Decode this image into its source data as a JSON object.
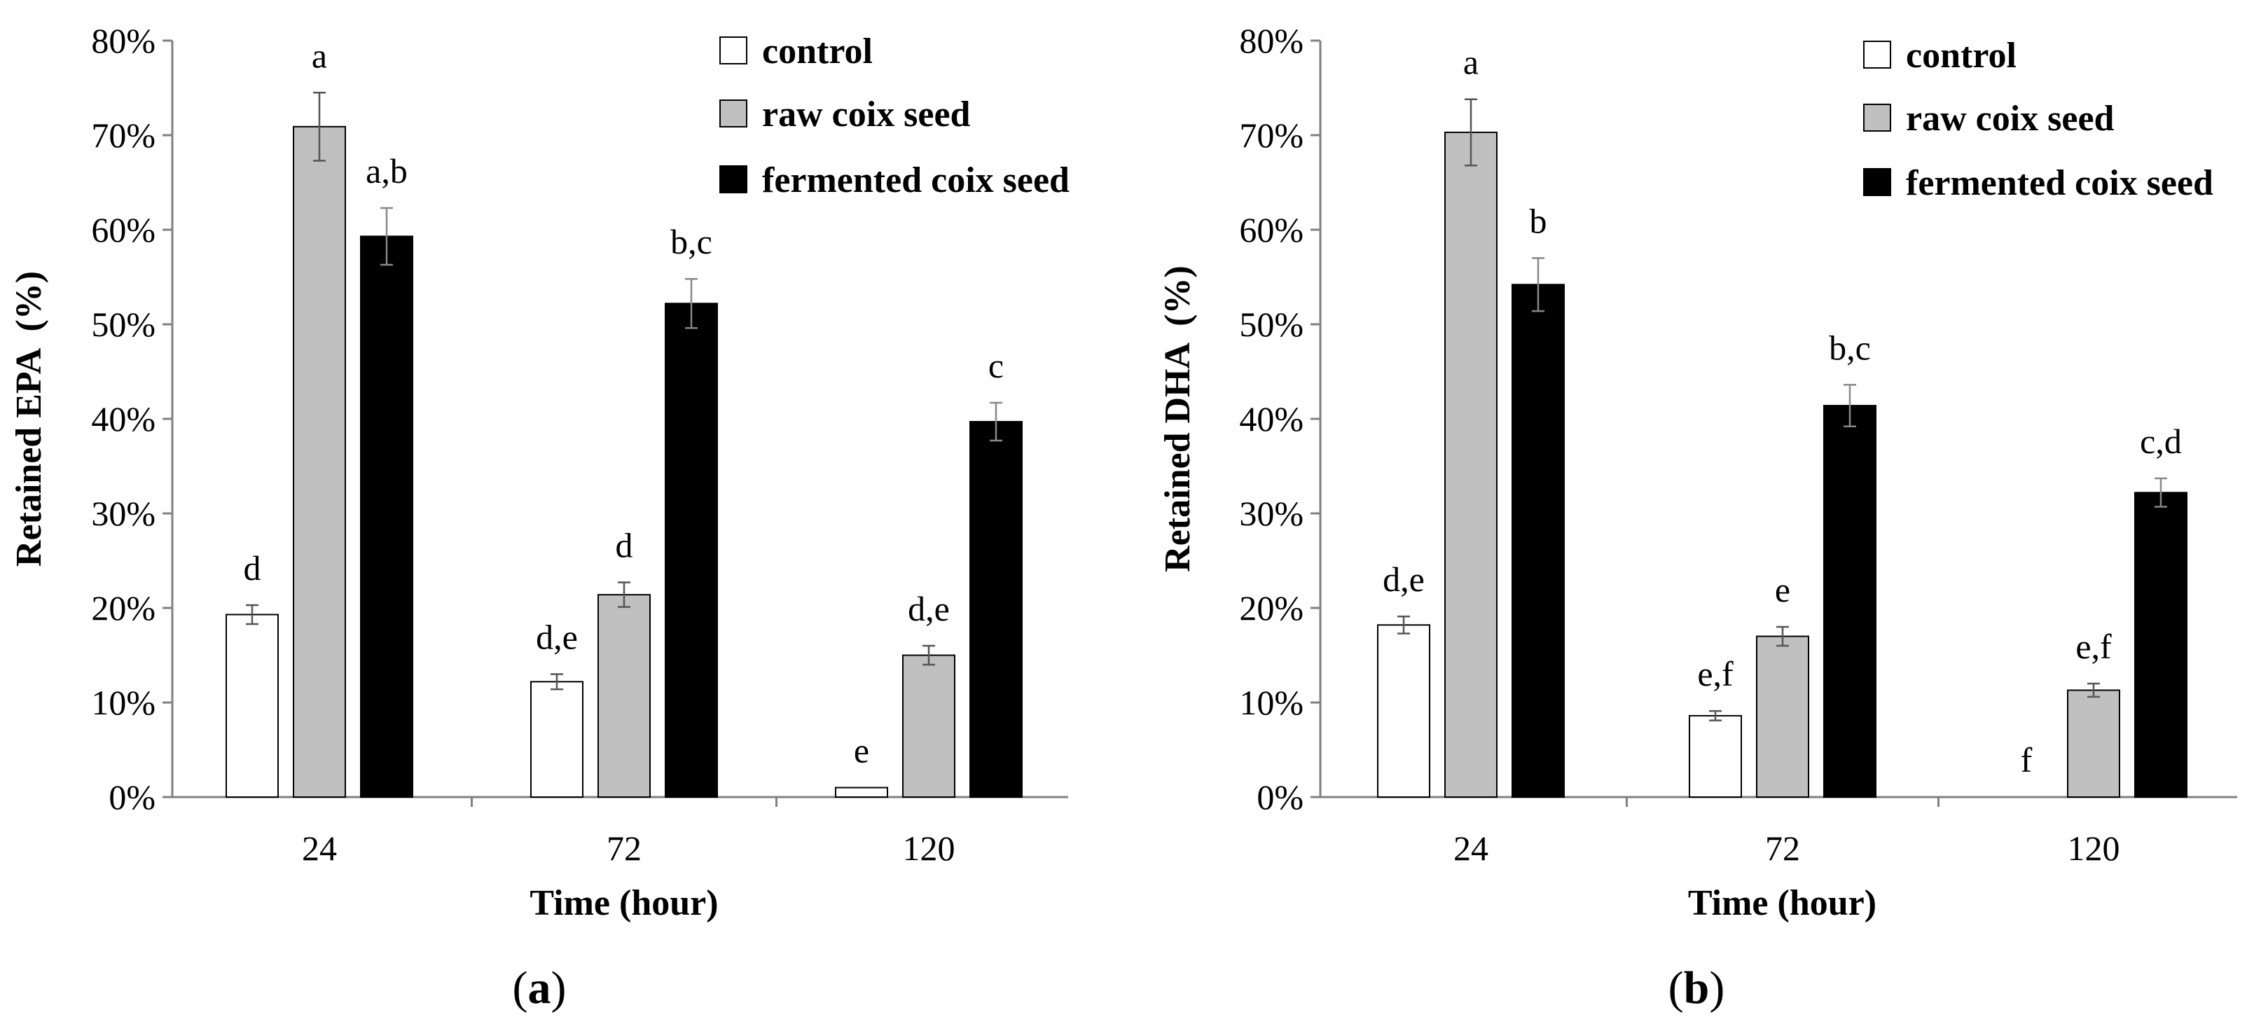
{
  "charts": [
    {
      "panel": "(a)",
      "panel_letter": "a",
      "chart_data": {
        "type": "bar",
        "title": "",
        "xlabel": "Time (hour)",
        "ylabel": "Retained EPA  (%)",
        "categories": [
          "24",
          "72",
          "120"
        ],
        "ylim": [
          0,
          80
        ],
        "yticks": [
          "0%",
          "10%",
          "20%",
          "30%",
          "40%",
          "50%",
          "60%",
          "70%",
          "80%"
        ],
        "series": [
          {
            "name": "control",
            "values": [
              19.3,
              12.2,
              1.0
            ],
            "errors": [
              1.0,
              0.8,
              0
            ],
            "labels": [
              "d",
              "d,e",
              "e"
            ]
          },
          {
            "name": "raw coix seed",
            "values": [
              70.9,
              21.4,
              15.0
            ],
            "errors": [
              3.6,
              1.3,
              1.0
            ],
            "labels": [
              "a",
              "d",
              "d,e"
            ]
          },
          {
            "name": "fermented coix seed",
            "values": [
              59.3,
              52.2,
              39.7
            ],
            "errors": [
              3.0,
              2.6,
              2.0
            ],
            "labels": [
              "a,b",
              "b,c",
              "c"
            ]
          }
        ],
        "legend": "top-right"
      }
    },
    {
      "panel": "(b)",
      "panel_letter": "b",
      "chart_data": {
        "type": "bar",
        "title": "",
        "xlabel": "Time (hour)",
        "ylabel": "Retained DHA  (%)",
        "categories": [
          "24",
          "72",
          "120"
        ],
        "ylim": [
          0,
          80
        ],
        "yticks": [
          "0%",
          "10%",
          "20%",
          "30%",
          "40%",
          "50%",
          "60%",
          "70%",
          "80%"
        ],
        "series": [
          {
            "name": "control",
            "values": [
              18.2,
              8.6,
              0
            ],
            "errors": [
              0.9,
              0.5,
              0
            ],
            "labels": [
              "d,e",
              "e,f",
              "f"
            ]
          },
          {
            "name": "raw coix seed",
            "values": [
              70.3,
              17.0,
              11.3
            ],
            "errors": [
              3.5,
              1.0,
              0.7
            ],
            "labels": [
              "a",
              "e",
              "e,f"
            ]
          },
          {
            "name": "fermented coix seed",
            "values": [
              54.2,
              41.4,
              32.2
            ],
            "errors": [
              2.8,
              2.2,
              1.5
            ],
            "labels": [
              "b",
              "b,c",
              "c,d"
            ]
          }
        ],
        "legend": "top-right"
      }
    }
  ],
  "colors": {
    "control": "#ffffff",
    "raw coix seed": "#c0c0c0",
    "fermented coix seed": "#000000",
    "axis": "#808080"
  }
}
